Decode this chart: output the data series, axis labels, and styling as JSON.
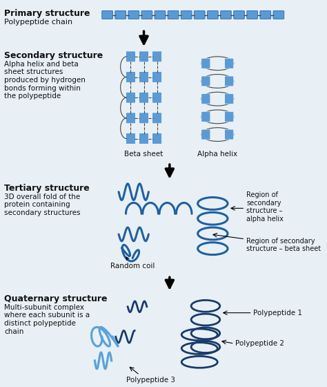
{
  "bg_color": "#e8f0f5",
  "primary_color": "#5b9bd5",
  "dark_blue": "#1a3a6b",
  "light_blue": "#5ba3d9",
  "text_color": "#111111",
  "sections": {
    "primary": {
      "title": "Primary structure",
      "subtitle": "Polypeptide chain"
    },
    "secondary": {
      "title": "Secondary structure",
      "desc": "Alpha helix and beta\nsheet structures\nproduced by hydrogen\nbonds forming within\nthe polypeptide",
      "label_beta": "Beta sheet",
      "label_alpha": "Alpha helix"
    },
    "tertiary": {
      "title": "Tertiary structure",
      "desc": "3D overall fold of the\nprotein containing\nsecondary structures",
      "label_coil": "Random coil",
      "label_alpha": "Region of\nsecondary\nstructure –\nalpha helix",
      "label_beta": "Region of secondary\nstructure – beta sheet"
    },
    "quaternary": {
      "title": "Quaternary structure",
      "desc": "Multi-subunit complex\nwhere each subunit is a\ndistinct polypeptide\nchain",
      "label1": "Polypeptide 1",
      "label2": "Polypeptide 2",
      "label3": "Polypeptide 3"
    }
  }
}
